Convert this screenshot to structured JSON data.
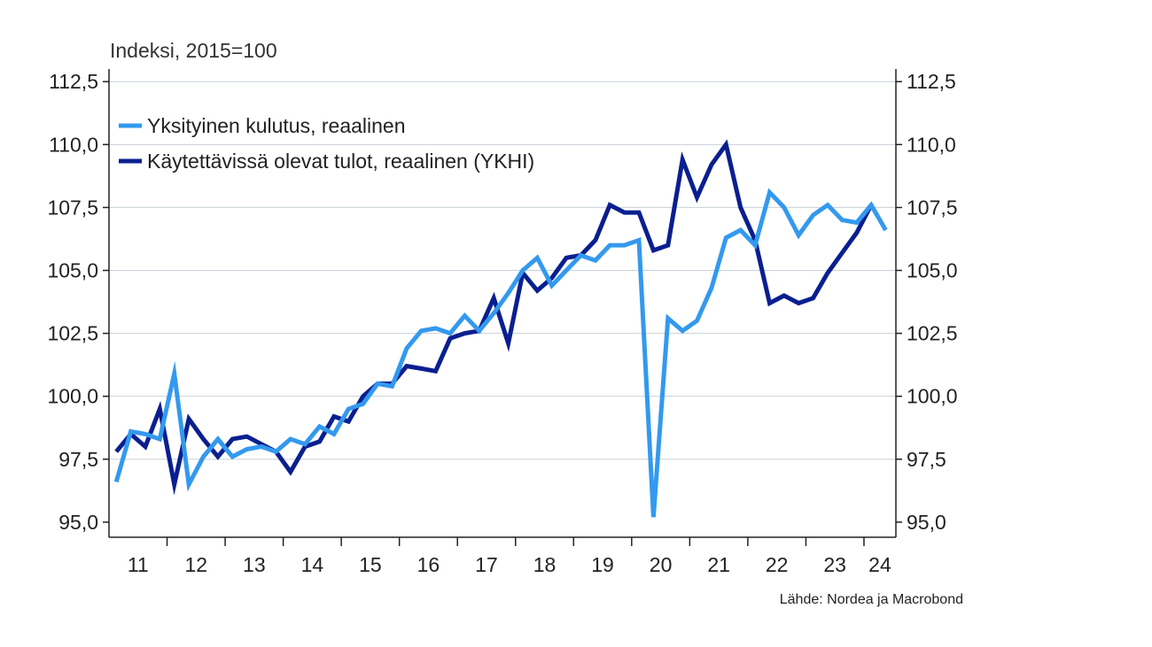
{
  "chart_data": {
    "type": "line",
    "units_label": "Indeksi, 2015=100",
    "source": "Lähde: Nordea ja Macrobond",
    "ylim": [
      95.0,
      112.5
    ],
    "y_ticks": [
      "95,0",
      "97,5",
      "100,0",
      "102,5",
      "105,0",
      "107,5",
      "110,0",
      "112,5"
    ],
    "y_tick_values": [
      95.0,
      97.5,
      100.0,
      102.5,
      105.0,
      107.5,
      110.0,
      112.5
    ],
    "x_labels": [
      "11",
      "12",
      "13",
      "14",
      "15",
      "16",
      "17",
      "18",
      "19",
      "20",
      "21",
      "22",
      "23",
      "24"
    ],
    "grid": "horizontal",
    "legend_position": "top-left",
    "x_start": "2011Q1",
    "series": [
      {
        "name": "Yksityinen kulutus, reaalinen",
        "color": "#3399ee",
        "values": [
          96.6,
          98.6,
          98.5,
          98.3,
          100.9,
          96.5,
          97.6,
          98.3,
          97.6,
          97.9,
          98.0,
          97.8,
          98.3,
          98.1,
          98.8,
          98.5,
          99.5,
          99.7,
          100.5,
          100.4,
          101.9,
          102.6,
          102.7,
          102.5,
          103.2,
          102.6,
          103.3,
          104.1,
          105.0,
          105.5,
          104.4,
          105.0,
          105.6,
          105.4,
          106.0,
          106.0,
          106.2,
          95.2,
          103.1,
          102.6,
          103.0,
          104.3,
          106.3,
          106.6,
          106.0,
          108.1,
          107.5,
          106.4,
          107.2,
          107.6,
          107.0,
          106.9,
          107.6,
          106.6
        ]
      },
      {
        "name": "Käytettävissä olevat tulot, reaalinen (YKHI)",
        "color": "#0a1f8f",
        "values": [
          97.8,
          98.5,
          98.0,
          99.5,
          96.5,
          99.1,
          98.3,
          97.6,
          98.3,
          98.4,
          98.1,
          97.8,
          97.0,
          98.0,
          98.2,
          99.2,
          99.0,
          100.0,
          100.5,
          100.5,
          101.2,
          101.1,
          101.0,
          102.3,
          102.5,
          102.6,
          103.9,
          102.1,
          104.9,
          104.2,
          104.7,
          105.5,
          105.6,
          106.2,
          107.6,
          107.3,
          107.3,
          105.8,
          106.0,
          109.4,
          107.9,
          109.2,
          110.0,
          107.5,
          106.2,
          103.7,
          104.0,
          103.7,
          103.9,
          104.9,
          105.7,
          106.5,
          107.6
        ]
      }
    ]
  }
}
